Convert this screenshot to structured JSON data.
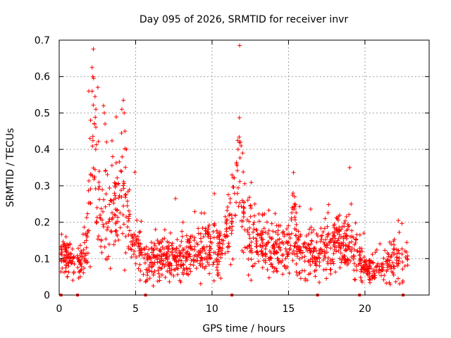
{
  "chart_data": {
    "type": "scatter",
    "title": "Day 095 of 2026, SRMTID for receiver invr",
    "xlabel": "GPS time / hours",
    "ylabel": "SRMTID / TECUs",
    "xlim": [
      0,
      24.2
    ],
    "ylim": [
      0,
      0.7
    ],
    "x_ticks": [
      0,
      5,
      10,
      15,
      20
    ],
    "x_tick_labels": [
      "0",
      "5",
      "10",
      "15",
      "20"
    ],
    "y_ticks": [
      0,
      0.1,
      0.2,
      0.3,
      0.4,
      0.5,
      0.6,
      0.7
    ],
    "y_tick_labels": [
      "0",
      "0.1",
      "0.2",
      "0.3",
      "0.4",
      "0.5",
      "0.6",
      "0.7"
    ],
    "grid": true,
    "marker": "+",
    "color": "#ff0000",
    "gap_markers_x": [
      0.12,
      1.2,
      5.65,
      11.3,
      16.9,
      19.65,
      22.5
    ],
    "profile": [
      [
        0.1,
        0.11
      ],
      [
        0.5,
        0.1
      ],
      [
        0.8,
        0.09
      ],
      [
        1.2,
        0.07
      ],
      [
        1.5,
        0.1
      ],
      [
        1.8,
        0.14
      ],
      [
        2.0,
        0.33
      ],
      [
        2.2,
        0.4
      ],
      [
        2.5,
        0.3
      ],
      [
        2.8,
        0.2
      ],
      [
        3.0,
        0.24
      ],
      [
        3.3,
        0.2
      ],
      [
        3.6,
        0.22
      ],
      [
        3.9,
        0.26
      ],
      [
        4.2,
        0.26
      ],
      [
        4.5,
        0.2
      ],
      [
        4.8,
        0.14
      ],
      [
        5.1,
        0.12
      ],
      [
        5.5,
        0.09
      ],
      [
        6.0,
        0.09
      ],
      [
        6.5,
        0.1
      ],
      [
        7.0,
        0.11
      ],
      [
        7.5,
        0.1
      ],
      [
        8.0,
        0.09
      ],
      [
        8.5,
        0.11
      ],
      [
        9.0,
        0.12
      ],
      [
        9.5,
        0.13
      ],
      [
        10.0,
        0.12
      ],
      [
        10.5,
        0.12
      ],
      [
        11.0,
        0.17
      ],
      [
        11.4,
        0.23
      ],
      [
        11.8,
        0.3
      ],
      [
        12.1,
        0.22
      ],
      [
        12.5,
        0.17
      ],
      [
        13.0,
        0.15
      ],
      [
        13.5,
        0.13
      ],
      [
        14.0,
        0.13
      ],
      [
        14.5,
        0.13
      ],
      [
        15.0,
        0.12
      ],
      [
        15.3,
        0.2
      ],
      [
        15.6,
        0.12
      ],
      [
        16.0,
        0.11
      ],
      [
        16.5,
        0.11
      ],
      [
        17.0,
        0.11
      ],
      [
        17.5,
        0.13
      ],
      [
        18.0,
        0.13
      ],
      [
        18.5,
        0.14
      ],
      [
        19.0,
        0.14
      ],
      [
        19.5,
        0.12
      ],
      [
        20.0,
        0.07
      ],
      [
        20.5,
        0.07
      ],
      [
        21.0,
        0.07
      ],
      [
        21.5,
        0.08
      ],
      [
        22.0,
        0.1
      ],
      [
        22.5,
        0.09
      ],
      [
        22.8,
        0.09
      ]
    ],
    "highlights": [
      [
        2.15,
        0.625
      ],
      [
        2.2,
        0.6
      ],
      [
        2.25,
        0.595
      ],
      [
        2.4,
        0.51
      ],
      [
        2.9,
        0.52
      ],
      [
        2.95,
        0.5
      ],
      [
        2.3,
        0.47
      ],
      [
        2.05,
        0.48
      ],
      [
        3.0,
        0.47
      ],
      [
        4.2,
        0.535
      ],
      [
        4.25,
        0.5
      ],
      [
        4.1,
        0.51
      ],
      [
        4.3,
        0.45
      ],
      [
        4.4,
        0.4
      ],
      [
        11.85,
        0.42
      ],
      [
        11.9,
        0.41
      ],
      [
        11.7,
        0.4
      ],
      [
        12.0,
        0.39
      ],
      [
        11.6,
        0.36
      ],
      [
        11.3,
        0.33
      ],
      [
        15.3,
        0.28
      ],
      [
        15.4,
        0.27
      ],
      [
        19.0,
        0.35
      ],
      [
        19.1,
        0.25
      ],
      [
        8.1,
        0.2
      ],
      [
        6.3,
        0.18
      ],
      [
        18.2,
        0.21
      ],
      [
        3.1,
        0.42
      ],
      [
        3.5,
        0.38
      ],
      [
        12.8,
        0.25
      ]
    ]
  }
}
